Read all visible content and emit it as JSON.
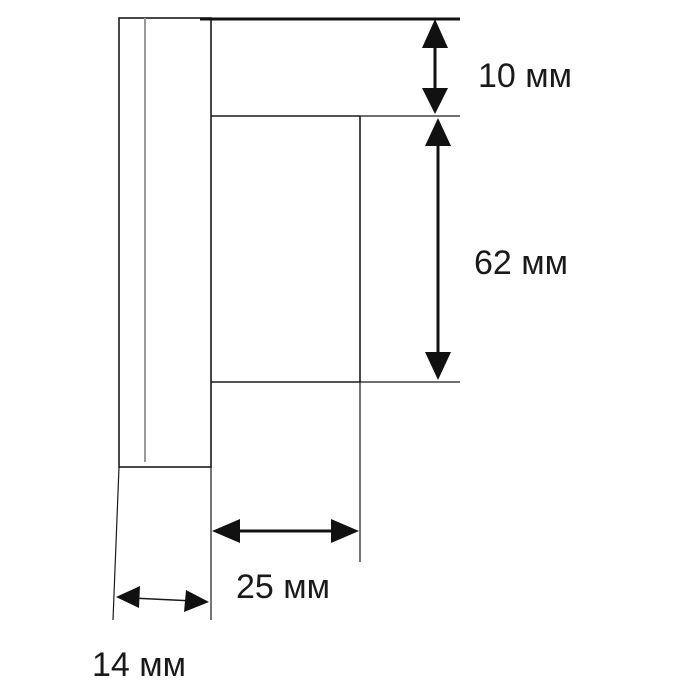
{
  "dimensions": {
    "top_gap": "10 мм",
    "height": "62 мм",
    "depth": "25 мм",
    "thickness": "14 мм"
  },
  "colors": {
    "line": "#1a1a1a",
    "background": "#ffffff"
  }
}
